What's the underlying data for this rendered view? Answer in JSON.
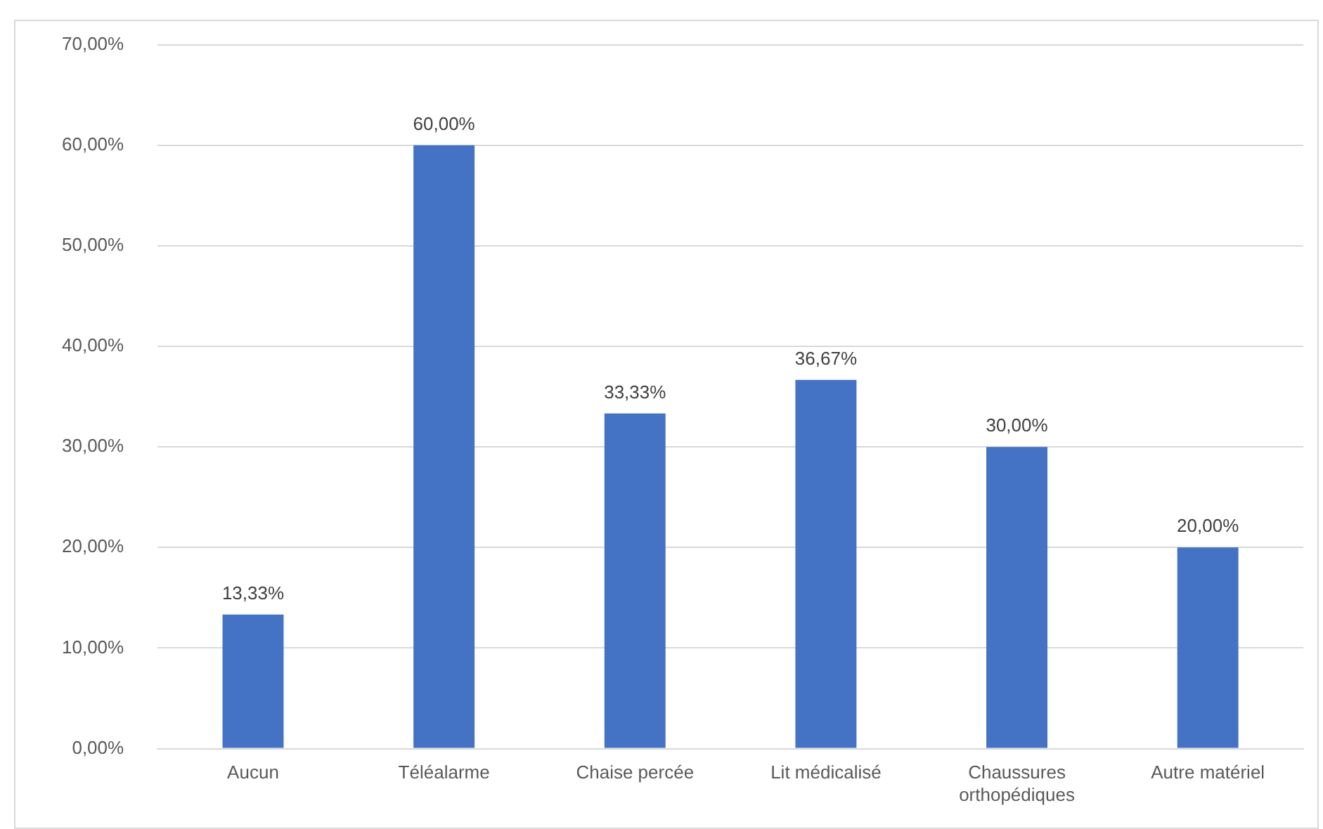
{
  "chart_data": {
    "type": "bar",
    "categories": [
      "Aucun",
      "Téléalarme",
      "Chaise percée",
      "Lit médicalisé",
      "Chaussures orthopédiques",
      "Autre matériel"
    ],
    "values": [
      13.33,
      60,
      33.33,
      36.67,
      30,
      20
    ],
    "value_labels": [
      "13,33%",
      "60,00%",
      "33,33%",
      "36,67%",
      "30,00%",
      "20,00%"
    ],
    "color": "#4472c4",
    "ylim": [
      0,
      70
    ],
    "yticks": [
      {
        "value": 0,
        "label": "0,00%"
      },
      {
        "value": 10,
        "label": "10,00%"
      },
      {
        "value": 20,
        "label": "20,00%"
      },
      {
        "value": 30,
        "label": "30,00%"
      },
      {
        "value": 40,
        "label": "40,00%"
      },
      {
        "value": 50,
        "label": "50,00%"
      },
      {
        "value": 60,
        "label": "60,00%"
      },
      {
        "value": 70,
        "label": "70,00%"
      }
    ],
    "grid": "y",
    "legend": false
  }
}
